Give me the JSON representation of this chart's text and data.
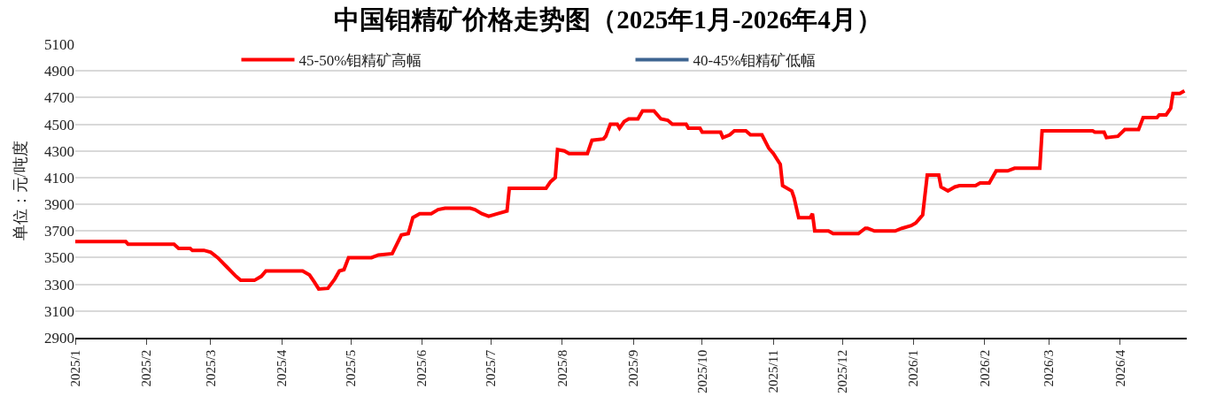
{
  "chart_data": {
    "type": "line",
    "title": "中国钼精矿价格走势图（2025年1月-2026年4月）",
    "ylabel": "单位：元/吨度",
    "xlim": [
      "2025-01-01",
      "2026-04-30"
    ],
    "xticks": [
      {
        "value": "2025-01-01",
        "label": "2025/1"
      },
      {
        "value": "2025-02-01",
        "label": "2025/2"
      },
      {
        "value": "2025-03-01",
        "label": "2025/3"
      },
      {
        "value": "2025-04-01",
        "label": "2025/4"
      },
      {
        "value": "2025-05-01",
        "label": "2025/5"
      },
      {
        "value": "2025-06-01",
        "label": "2025/6"
      },
      {
        "value": "2025-07-01",
        "label": "2025/7"
      },
      {
        "value": "2025-08-01",
        "label": "2025/8"
      },
      {
        "value": "2025-09-01",
        "label": "2025/9"
      },
      {
        "value": "2025-10-01",
        "label": "2025/10"
      },
      {
        "value": "2025-11-01",
        "label": "2025/11"
      },
      {
        "value": "2025-12-01",
        "label": "2025/12"
      },
      {
        "value": "2026-01-01",
        "label": "2026/1"
      },
      {
        "value": "2026-02-01",
        "label": "2026/2"
      },
      {
        "value": "2026-03-01",
        "label": "2026/3"
      },
      {
        "value": "2026-04-01",
        "label": "2026/4"
      }
    ],
    "ylim": [
      2900,
      5100
    ],
    "yticks": [
      2900,
      3100,
      3300,
      3500,
      3700,
      3900,
      4100,
      4300,
      4500,
      4700,
      4900,
      5100
    ],
    "grid": "y",
    "legend": "top",
    "line_style": "solid",
    "marker": "none",
    "series": [
      {
        "name": "45-50%钼精矿高幅",
        "color": "#ff0000",
        "x": [
          "2025-01-01",
          "2025-01-23",
          "2025-01-24",
          "2025-02-13",
          "2025-02-15",
          "2025-02-20",
          "2025-02-21",
          "2025-02-26",
          "2025-03-01",
          "2025-03-04",
          "2025-03-08",
          "2025-03-12",
          "2025-03-14",
          "2025-03-20",
          "2025-03-23",
          "2025-03-25",
          "2025-04-10",
          "2025-04-13",
          "2025-04-15",
          "2025-04-17",
          "2025-04-21",
          "2025-04-24",
          "2025-04-26",
          "2025-04-28",
          "2025-04-30",
          "2025-05-10",
          "2025-05-13",
          "2025-05-19",
          "2025-05-21",
          "2025-05-23",
          "2025-05-26",
          "2025-05-28",
          "2025-05-31",
          "2025-06-05",
          "2025-06-08",
          "2025-06-11",
          "2025-06-22",
          "2025-06-24",
          "2025-06-27",
          "2025-06-30",
          "2025-07-04",
          "2025-07-08",
          "2025-07-09",
          "2025-07-25",
          "2025-07-27",
          "2025-07-29",
          "2025-07-30",
          "2025-08-02",
          "2025-08-04",
          "2025-08-12",
          "2025-08-14",
          "2025-08-19",
          "2025-08-20",
          "2025-08-22",
          "2025-08-25",
          "2025-08-26",
          "2025-08-28",
          "2025-08-30",
          "2025-09-03",
          "2025-09-05",
          "2025-09-10",
          "2025-09-13",
          "2025-09-16",
          "2025-09-18",
          "2025-09-24",
          "2025-09-25",
          "2025-09-30",
          "2025-10-01",
          "2025-10-09",
          "2025-10-10",
          "2025-10-13",
          "2025-10-15",
          "2025-10-20",
          "2025-10-22",
          "2025-10-27",
          "2025-10-30",
          "2025-11-01",
          "2025-11-04",
          "2025-11-05",
          "2025-11-09",
          "2025-11-10",
          "2025-11-12",
          "2025-11-17",
          "2025-11-18",
          "2025-11-19",
          "2025-11-25",
          "2025-11-27",
          "2025-12-08",
          "2025-12-11",
          "2025-12-12",
          "2025-12-15",
          "2025-12-24",
          "2025-12-27",
          "2025-12-31",
          "2026-01-02",
          "2026-01-05",
          "2026-01-07",
          "2026-01-12",
          "2026-01-13",
          "2026-01-16",
          "2026-01-19",
          "2026-01-21",
          "2026-01-28",
          "2026-01-30",
          "2026-02-03",
          "2026-02-06",
          "2026-02-11",
          "2026-02-14",
          "2026-02-25",
          "2026-02-26",
          "2026-03-20",
          "2026-03-21",
          "2026-03-25",
          "2026-03-26",
          "2026-03-31",
          "2026-04-03",
          "2026-04-09",
          "2026-04-11",
          "2026-04-17",
          "2026-04-18",
          "2026-04-21",
          "2026-04-23",
          "2026-04-24",
          "2026-04-27",
          "2026-04-29"
        ],
        "values": [
          3620,
          3620,
          3600,
          3600,
          3570,
          3570,
          3555,
          3555,
          3540,
          3500,
          3430,
          3360,
          3330,
          3330,
          3360,
          3400,
          3400,
          3370,
          3320,
          3265,
          3270,
          3340,
          3400,
          3410,
          3500,
          3500,
          3520,
          3530,
          3600,
          3670,
          3680,
          3800,
          3830,
          3830,
          3860,
          3870,
          3870,
          3860,
          3830,
          3810,
          3830,
          3850,
          4020,
          4020,
          4070,
          4100,
          4310,
          4300,
          4280,
          4280,
          4380,
          4390,
          4410,
          4500,
          4500,
          4470,
          4520,
          4540,
          4540,
          4600,
          4600,
          4540,
          4530,
          4500,
          4500,
          4470,
          4470,
          4440,
          4440,
          4400,
          4420,
          4450,
          4450,
          4420,
          4420,
          4320,
          4280,
          4200,
          4040,
          4000,
          3950,
          3800,
          3800,
          3830,
          3700,
          3700,
          3680,
          3680,
          3720,
          3720,
          3700,
          3700,
          3720,
          3740,
          3760,
          3820,
          4120,
          4120,
          4030,
          4000,
          4030,
          4040,
          4040,
          4060,
          4060,
          4150,
          4150,
          4170,
          4170,
          4450,
          4450,
          4440,
          4440,
          4400,
          4410,
          4460,
          4460,
          4550,
          4550,
          4570,
          4570,
          4620,
          4730,
          4730,
          4750
        ]
      },
      {
        "name": "40-45%钼精矿低幅",
        "color": "#3e6591"
      }
    ]
  }
}
